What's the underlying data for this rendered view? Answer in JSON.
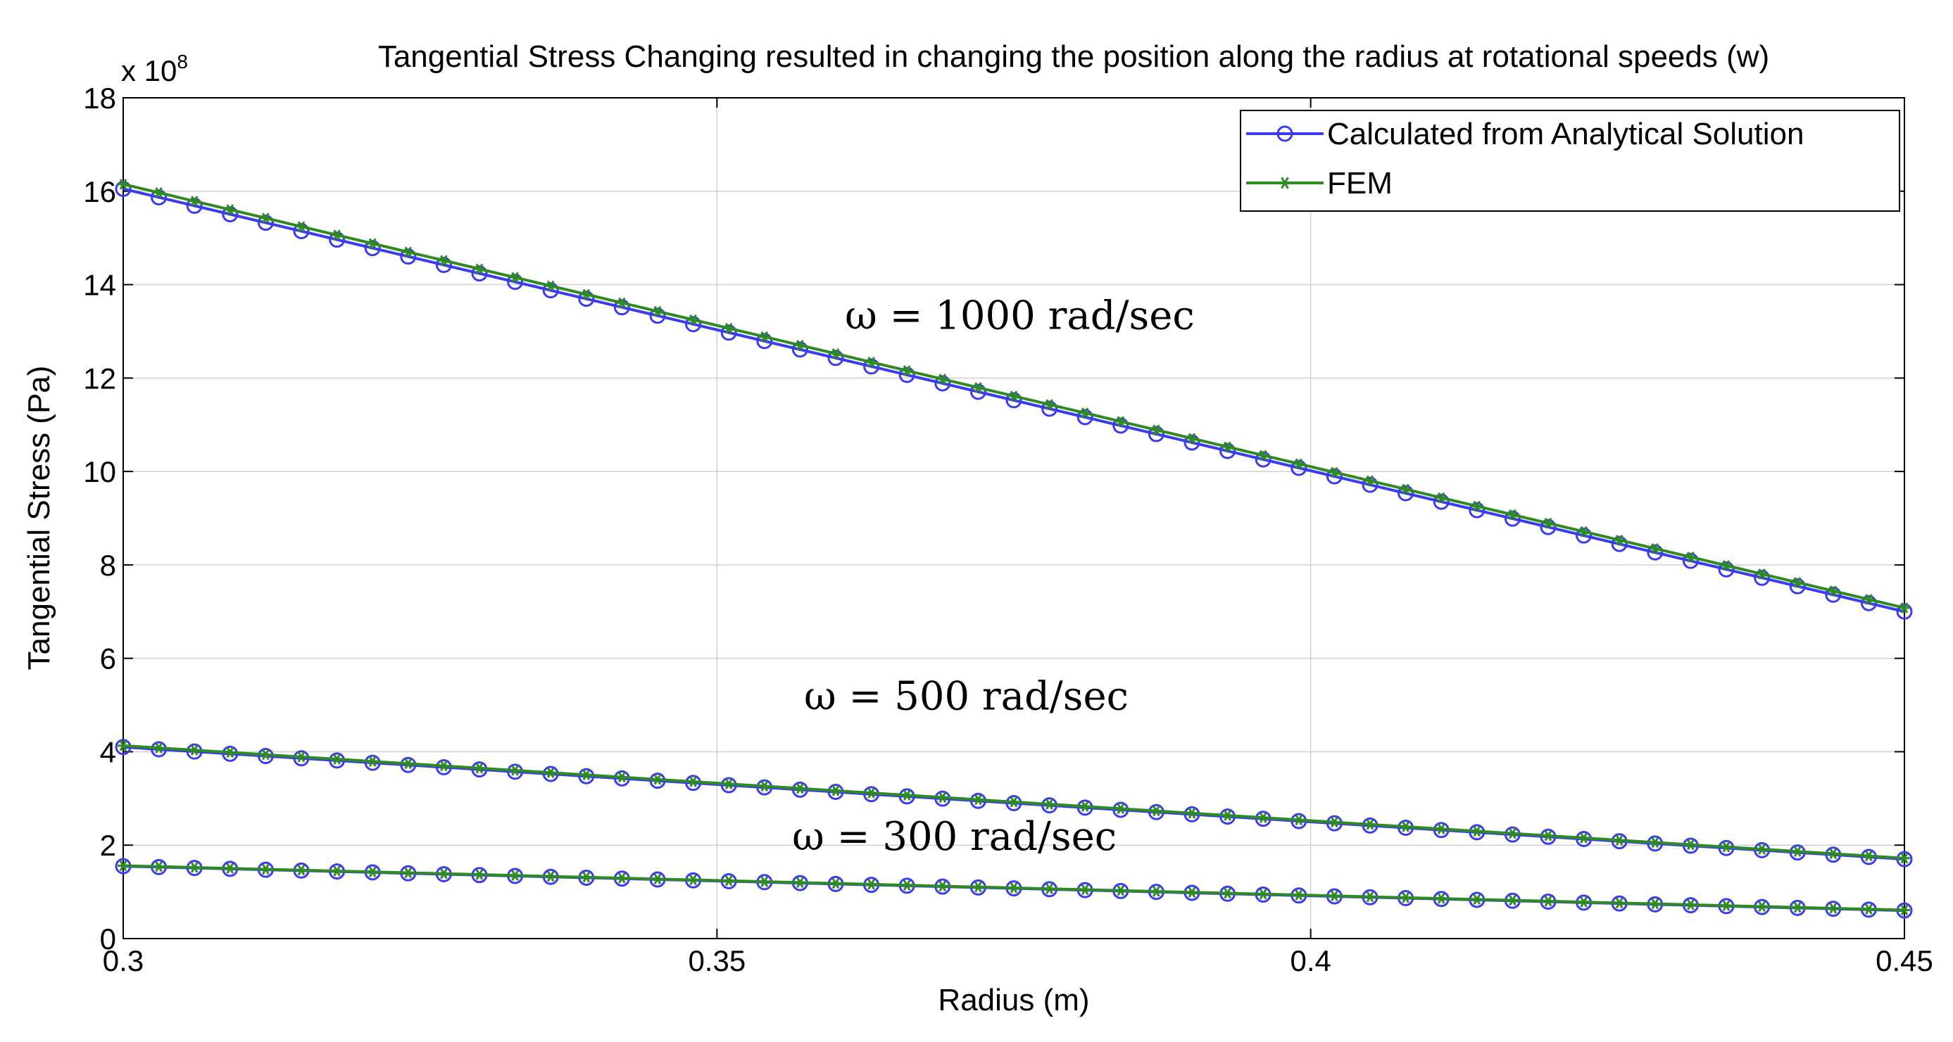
{
  "chart_data": {
    "type": "line",
    "title": "Tangential Stress Changing resulted in changing the position along the radius at rotational speeds (w)",
    "xlabel": "Radius (m)",
    "ylabel": "Tangential Stress (Pa)",
    "y_multiplier": "x 10",
    "y_multiplier_exp": "8",
    "xlim": [
      0.3,
      0.45
    ],
    "ylim": [
      0,
      18
    ],
    "x_ticks": [
      0.3,
      0.35,
      0.4,
      0.45
    ],
    "x_tick_labels": [
      "0.3",
      "0.35",
      "0.4",
      "0.45"
    ],
    "y_ticks": [
      0,
      2,
      4,
      6,
      8,
      10,
      12,
      14,
      16,
      18
    ],
    "y_tick_labels": [
      "0",
      "2",
      "4",
      "6",
      "8",
      "10",
      "12",
      "14",
      "16",
      "18"
    ],
    "grid": true,
    "legend_position": "top-right",
    "legend": [
      "Calculated from Analytical Solution",
      "FEM"
    ],
    "colors": {
      "analytical": "#3b3bf0",
      "fem": "#2e8b22"
    },
    "num_points": 51,
    "series": [
      {
        "name": "Calculated from Analytical Solution",
        "omega": "ω = 1000 rad/sec",
        "start": 16.05,
        "end": 7.0,
        "marker": "circle"
      },
      {
        "name": "FEM",
        "omega": "ω = 1000 rad/sec",
        "start": 16.15,
        "end": 7.08,
        "marker": "star"
      },
      {
        "name": "Calculated from Analytical Solution",
        "omega": "ω = 500 rad/sec",
        "start": 4.1,
        "end": 1.7,
        "marker": "circle"
      },
      {
        "name": "FEM",
        "omega": "ω = 500 rad/sec",
        "start": 4.13,
        "end": 1.72,
        "marker": "star"
      },
      {
        "name": "Calculated from Analytical Solution",
        "omega": "ω = 300 rad/sec",
        "start": 1.55,
        "end": 0.6,
        "marker": "circle"
      },
      {
        "name": "FEM",
        "omega": "ω = 300 rad/sec",
        "start": 1.56,
        "end": 0.61,
        "marker": "star"
      }
    ],
    "annotations": [
      {
        "text": "ω = 1000 rad/sec",
        "x": 0.3755,
        "y": 13.05
      },
      {
        "text": "ω = 500 rad/sec",
        "x": 0.371,
        "y": 4.9
      },
      {
        "text": "ω = 300 rad/sec",
        "x": 0.37,
        "y": 1.9
      }
    ]
  }
}
